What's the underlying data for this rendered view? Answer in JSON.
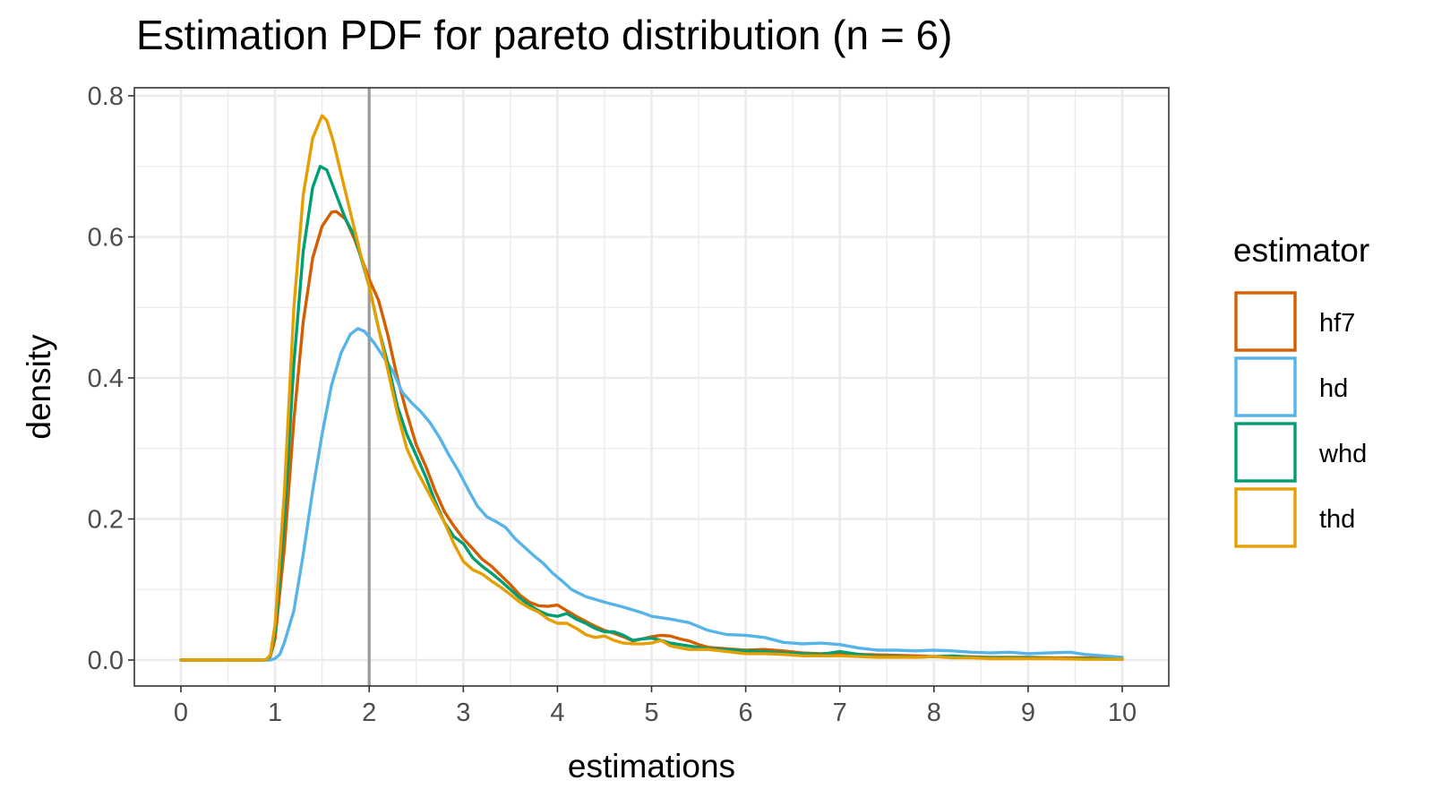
{
  "chart_data": {
    "type": "line",
    "title": "Estimation PDF for pareto distribution (n = 6)",
    "xlabel": "estimations",
    "ylabel": "density",
    "xlim": [
      0,
      10
    ],
    "ylim": [
      0,
      0.8
    ],
    "x_ticks": [
      "0",
      "1",
      "2",
      "3",
      "4",
      "5",
      "6",
      "7",
      "8",
      "9",
      "10"
    ],
    "y_ticks": [
      "0.0",
      "0.2",
      "0.4",
      "0.6",
      "0.8"
    ],
    "grid": true,
    "reference_line": {
      "x": 2,
      "color": "#999999"
    },
    "legend": {
      "title": "estimator",
      "position": "right"
    },
    "series": [
      {
        "name": "hf7",
        "color": "#D55E00",
        "points": [
          [
            0,
            0
          ],
          [
            0.5,
            0
          ],
          [
            0.9,
            0
          ],
          [
            0.95,
            0.005
          ],
          [
            1.0,
            0.03
          ],
          [
            1.1,
            0.16
          ],
          [
            1.2,
            0.34
          ],
          [
            1.3,
            0.48
          ],
          [
            1.4,
            0.57
          ],
          [
            1.5,
            0.615
          ],
          [
            1.6,
            0.635
          ],
          [
            1.65,
            0.636
          ],
          [
            1.75,
            0.625
          ],
          [
            1.85,
            0.595
          ],
          [
            2.0,
            0.54
          ],
          [
            2.1,
            0.51
          ],
          [
            2.2,
            0.46
          ],
          [
            2.3,
            0.4
          ],
          [
            2.4,
            0.35
          ],
          [
            2.5,
            0.305
          ],
          [
            2.6,
            0.275
          ],
          [
            2.7,
            0.24
          ],
          [
            2.8,
            0.21
          ],
          [
            2.9,
            0.19
          ],
          [
            3.0,
            0.172
          ],
          [
            3.1,
            0.158
          ],
          [
            3.2,
            0.143
          ],
          [
            3.3,
            0.133
          ],
          [
            3.4,
            0.12
          ],
          [
            3.5,
            0.107
          ],
          [
            3.6,
            0.092
          ],
          [
            3.7,
            0.082
          ],
          [
            3.8,
            0.077
          ],
          [
            3.9,
            0.076
          ],
          [
            4.0,
            0.078
          ],
          [
            4.1,
            0.07
          ],
          [
            4.2,
            0.062
          ],
          [
            4.3,
            0.055
          ],
          [
            4.4,
            0.048
          ],
          [
            4.5,
            0.042
          ],
          [
            4.6,
            0.038
          ],
          [
            4.7,
            0.033
          ],
          [
            4.8,
            0.027
          ],
          [
            4.9,
            0.03
          ],
          [
            5.0,
            0.033
          ],
          [
            5.1,
            0.035
          ],
          [
            5.2,
            0.034
          ],
          [
            5.3,
            0.03
          ],
          [
            5.4,
            0.027
          ],
          [
            5.5,
            0.022
          ],
          [
            5.6,
            0.018
          ],
          [
            5.8,
            0.016
          ],
          [
            6.0,
            0.014
          ],
          [
            6.2,
            0.015
          ],
          [
            6.4,
            0.013
          ],
          [
            6.6,
            0.01
          ],
          [
            6.8,
            0.009
          ],
          [
            7.0,
            0.01
          ],
          [
            7.2,
            0.008
          ],
          [
            7.5,
            0.007
          ],
          [
            7.8,
            0.006
          ],
          [
            8.0,
            0.005
          ],
          [
            8.3,
            0.005
          ],
          [
            8.6,
            0.004
          ],
          [
            9.0,
            0.004
          ],
          [
            9.3,
            0.003
          ],
          [
            9.6,
            0.003
          ],
          [
            10,
            0.002
          ]
        ]
      },
      {
        "name": "hd",
        "color": "#56B4E9",
        "points": [
          [
            0,
            0
          ],
          [
            0.5,
            0
          ],
          [
            0.95,
            0
          ],
          [
            1.0,
            0.002
          ],
          [
            1.05,
            0.008
          ],
          [
            1.1,
            0.025
          ],
          [
            1.2,
            0.07
          ],
          [
            1.3,
            0.15
          ],
          [
            1.4,
            0.24
          ],
          [
            1.5,
            0.32
          ],
          [
            1.6,
            0.39
          ],
          [
            1.7,
            0.435
          ],
          [
            1.8,
            0.462
          ],
          [
            1.88,
            0.47
          ],
          [
            1.95,
            0.466
          ],
          [
            2.05,
            0.45
          ],
          [
            2.15,
            0.43
          ],
          [
            2.25,
            0.41
          ],
          [
            2.35,
            0.38
          ],
          [
            2.45,
            0.365
          ],
          [
            2.55,
            0.352
          ],
          [
            2.65,
            0.336
          ],
          [
            2.75,
            0.315
          ],
          [
            2.85,
            0.29
          ],
          [
            2.95,
            0.268
          ],
          [
            3.05,
            0.242
          ],
          [
            3.15,
            0.218
          ],
          [
            3.25,
            0.203
          ],
          [
            3.35,
            0.196
          ],
          [
            3.45,
            0.188
          ],
          [
            3.55,
            0.172
          ],
          [
            3.65,
            0.16
          ],
          [
            3.75,
            0.148
          ],
          [
            3.85,
            0.137
          ],
          [
            3.95,
            0.123
          ],
          [
            4.05,
            0.112
          ],
          [
            4.15,
            0.1
          ],
          [
            4.3,
            0.09
          ],
          [
            4.5,
            0.082
          ],
          [
            4.7,
            0.075
          ],
          [
            4.9,
            0.067
          ],
          [
            5.0,
            0.062
          ],
          [
            5.2,
            0.058
          ],
          [
            5.4,
            0.053
          ],
          [
            5.6,
            0.042
          ],
          [
            5.8,
            0.036
          ],
          [
            6.0,
            0.035
          ],
          [
            6.2,
            0.032
          ],
          [
            6.4,
            0.025
          ],
          [
            6.6,
            0.023
          ],
          [
            6.8,
            0.024
          ],
          [
            7.0,
            0.022
          ],
          [
            7.2,
            0.017
          ],
          [
            7.4,
            0.014
          ],
          [
            7.6,
            0.014
          ],
          [
            7.8,
            0.013
          ],
          [
            8.0,
            0.014
          ],
          [
            8.2,
            0.013
          ],
          [
            8.4,
            0.011
          ],
          [
            8.6,
            0.01
          ],
          [
            8.8,
            0.011
          ],
          [
            9.0,
            0.009
          ],
          [
            9.2,
            0.01
          ],
          [
            9.45,
            0.011
          ],
          [
            9.6,
            0.008
          ],
          [
            9.8,
            0.006
          ],
          [
            10,
            0.004
          ]
        ]
      },
      {
        "name": "whd",
        "color": "#009E73",
        "points": [
          [
            0,
            0
          ],
          [
            0.5,
            0
          ],
          [
            0.9,
            0
          ],
          [
            0.95,
            0.006
          ],
          [
            1.0,
            0.04
          ],
          [
            1.1,
            0.2
          ],
          [
            1.2,
            0.42
          ],
          [
            1.3,
            0.58
          ],
          [
            1.4,
            0.67
          ],
          [
            1.48,
            0.7
          ],
          [
            1.55,
            0.695
          ],
          [
            1.65,
            0.66
          ],
          [
            1.75,
            0.625
          ],
          [
            1.85,
            0.6
          ],
          [
            2.0,
            0.53
          ],
          [
            2.1,
            0.47
          ],
          [
            2.2,
            0.42
          ],
          [
            2.3,
            0.36
          ],
          [
            2.4,
            0.32
          ],
          [
            2.5,
            0.29
          ],
          [
            2.6,
            0.26
          ],
          [
            2.7,
            0.225
          ],
          [
            2.8,
            0.195
          ],
          [
            2.9,
            0.175
          ],
          [
            3.0,
            0.165
          ],
          [
            3.1,
            0.145
          ],
          [
            3.2,
            0.133
          ],
          [
            3.3,
            0.123
          ],
          [
            3.4,
            0.112
          ],
          [
            3.5,
            0.1
          ],
          [
            3.6,
            0.088
          ],
          [
            3.7,
            0.078
          ],
          [
            3.8,
            0.07
          ],
          [
            3.9,
            0.064
          ],
          [
            4.0,
            0.062
          ],
          [
            4.1,
            0.066
          ],
          [
            4.2,
            0.058
          ],
          [
            4.3,
            0.052
          ],
          [
            4.4,
            0.045
          ],
          [
            4.5,
            0.04
          ],
          [
            4.6,
            0.04
          ],
          [
            4.7,
            0.035
          ],
          [
            4.8,
            0.028
          ],
          [
            4.9,
            0.03
          ],
          [
            5.0,
            0.031
          ],
          [
            5.1,
            0.028
          ],
          [
            5.2,
            0.024
          ],
          [
            5.4,
            0.02
          ],
          [
            5.6,
            0.016
          ],
          [
            5.8,
            0.015
          ],
          [
            6.0,
            0.013
          ],
          [
            6.2,
            0.012
          ],
          [
            6.4,
            0.01
          ],
          [
            6.6,
            0.009
          ],
          [
            6.8,
            0.008
          ],
          [
            7.0,
            0.012
          ],
          [
            7.2,
            0.008
          ],
          [
            7.4,
            0.005
          ],
          [
            7.6,
            0.005
          ],
          [
            7.8,
            0.004
          ],
          [
            8.0,
            0.005
          ],
          [
            8.2,
            0.006
          ],
          [
            8.4,
            0.004
          ],
          [
            8.6,
            0.003
          ],
          [
            9.0,
            0.003
          ],
          [
            9.3,
            0.002
          ],
          [
            9.6,
            0.002
          ],
          [
            10,
            0.001
          ]
        ]
      },
      {
        "name": "thd",
        "color": "#E69F00",
        "points": [
          [
            0,
            0
          ],
          [
            0.5,
            0
          ],
          [
            0.9,
            0
          ],
          [
            0.95,
            0.007
          ],
          [
            1.0,
            0.05
          ],
          [
            1.1,
            0.24
          ],
          [
            1.2,
            0.5
          ],
          [
            1.3,
            0.66
          ],
          [
            1.4,
            0.74
          ],
          [
            1.5,
            0.772
          ],
          [
            1.55,
            0.765
          ],
          [
            1.62,
            0.735
          ],
          [
            1.7,
            0.69
          ],
          [
            1.8,
            0.635
          ],
          [
            1.9,
            0.58
          ],
          [
            2.0,
            0.53
          ],
          [
            2.1,
            0.47
          ],
          [
            2.2,
            0.41
          ],
          [
            2.3,
            0.35
          ],
          [
            2.4,
            0.3
          ],
          [
            2.5,
            0.27
          ],
          [
            2.6,
            0.245
          ],
          [
            2.7,
            0.22
          ],
          [
            2.8,
            0.195
          ],
          [
            2.9,
            0.165
          ],
          [
            3.0,
            0.14
          ],
          [
            3.1,
            0.128
          ],
          [
            3.2,
            0.122
          ],
          [
            3.3,
            0.112
          ],
          [
            3.4,
            0.103
          ],
          [
            3.5,
            0.093
          ],
          [
            3.6,
            0.082
          ],
          [
            3.7,
            0.074
          ],
          [
            3.8,
            0.068
          ],
          [
            3.9,
            0.058
          ],
          [
            4.0,
            0.052
          ],
          [
            4.1,
            0.052
          ],
          [
            4.2,
            0.045
          ],
          [
            4.3,
            0.036
          ],
          [
            4.4,
            0.032
          ],
          [
            4.5,
            0.034
          ],
          [
            4.6,
            0.028
          ],
          [
            4.7,
            0.024
          ],
          [
            4.8,
            0.023
          ],
          [
            4.9,
            0.023
          ],
          [
            5.0,
            0.024
          ],
          [
            5.1,
            0.028
          ],
          [
            5.2,
            0.02
          ],
          [
            5.4,
            0.015
          ],
          [
            5.6,
            0.015
          ],
          [
            5.8,
            0.012
          ],
          [
            6.0,
            0.009
          ],
          [
            6.2,
            0.009
          ],
          [
            6.4,
            0.008
          ],
          [
            6.6,
            0.006
          ],
          [
            6.8,
            0.006
          ],
          [
            7.0,
            0.006
          ],
          [
            7.2,
            0.005
          ],
          [
            7.4,
            0.004
          ],
          [
            7.6,
            0.004
          ],
          [
            7.8,
            0.004
          ],
          [
            8.0,
            0.005
          ],
          [
            8.2,
            0.003
          ],
          [
            8.4,
            0.003
          ],
          [
            8.6,
            0.002
          ],
          [
            9.0,
            0.002
          ],
          [
            9.3,
            0.002
          ],
          [
            9.6,
            0.001
          ],
          [
            10,
            0.001
          ]
        ]
      }
    ]
  }
}
